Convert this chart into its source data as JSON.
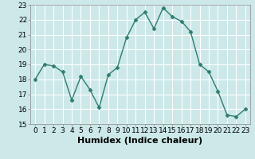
{
  "x": [
    0,
    1,
    2,
    3,
    4,
    5,
    6,
    7,
    8,
    9,
    10,
    11,
    12,
    13,
    14,
    15,
    16,
    17,
    18,
    19,
    20,
    21,
    22,
    23
  ],
  "y": [
    18.0,
    19.0,
    18.9,
    18.5,
    16.6,
    18.2,
    17.3,
    16.1,
    18.3,
    18.8,
    20.8,
    22.0,
    22.5,
    21.4,
    22.8,
    22.2,
    21.9,
    21.2,
    19.0,
    18.5,
    17.2,
    15.6,
    15.5,
    16.0
  ],
  "line_color": "#2e7d6e",
  "marker": "D",
  "marker_size": 2.5,
  "bg_color": "#cce8e8",
  "grid_color": "#ffffff",
  "xlabel": "Humidex (Indice chaleur)",
  "ylim": [
    15,
    23
  ],
  "xlim_min": -0.5,
  "xlim_max": 23.5,
  "yticks": [
    15,
    16,
    17,
    18,
    19,
    20,
    21,
    22,
    23
  ],
  "xticks": [
    0,
    1,
    2,
    3,
    4,
    5,
    6,
    7,
    8,
    9,
    10,
    11,
    12,
    13,
    14,
    15,
    16,
    17,
    18,
    19,
    20,
    21,
    22,
    23
  ],
  "xtick_labels": [
    "0",
    "1",
    "2",
    "3",
    "4",
    "5",
    "6",
    "7",
    "8",
    "9",
    "10",
    "11",
    "12",
    "13",
    "14",
    "15",
    "16",
    "17",
    "18",
    "19",
    "20",
    "21",
    "22",
    "23"
  ],
  "xlabel_fontsize": 8,
  "tick_fontsize": 6.5,
  "linewidth": 1.0
}
